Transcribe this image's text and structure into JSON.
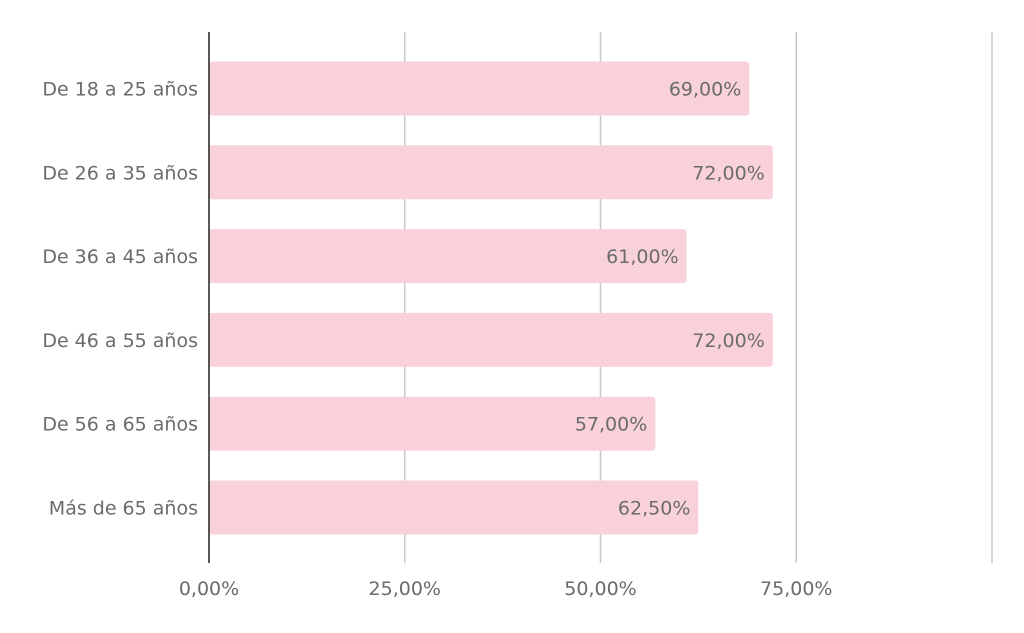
{
  "chart_data": {
    "type": "bar",
    "orientation": "horizontal",
    "categories": [
      "De 18 a 25 años",
      "De 26 a 35 años",
      "De 36 a 45 años",
      "De 46 a 55 años",
      "De 56 a 65 años",
      "Más de 65 años"
    ],
    "values": [
      69.0,
      72.0,
      61.0,
      72.0,
      57.0,
      62.5
    ],
    "data_labels": [
      "69,00%",
      "72,00%",
      "61,00%",
      "72,00%",
      "57,00%",
      "62,50%"
    ],
    "xlim": [
      0,
      100
    ],
    "x_ticks": [
      0,
      25,
      50,
      75
    ],
    "x_tick_labels": [
      "0,00%",
      "25,00%",
      "50,00%",
      "75,00%"
    ],
    "grid": true,
    "title": "",
    "xlabel": "",
    "ylabel": "",
    "legend": "none",
    "colors": {
      "bar": "#f9d1da",
      "grid": "#c8c8c8",
      "axis": "#222222",
      "text": "#6b6b6b"
    }
  }
}
